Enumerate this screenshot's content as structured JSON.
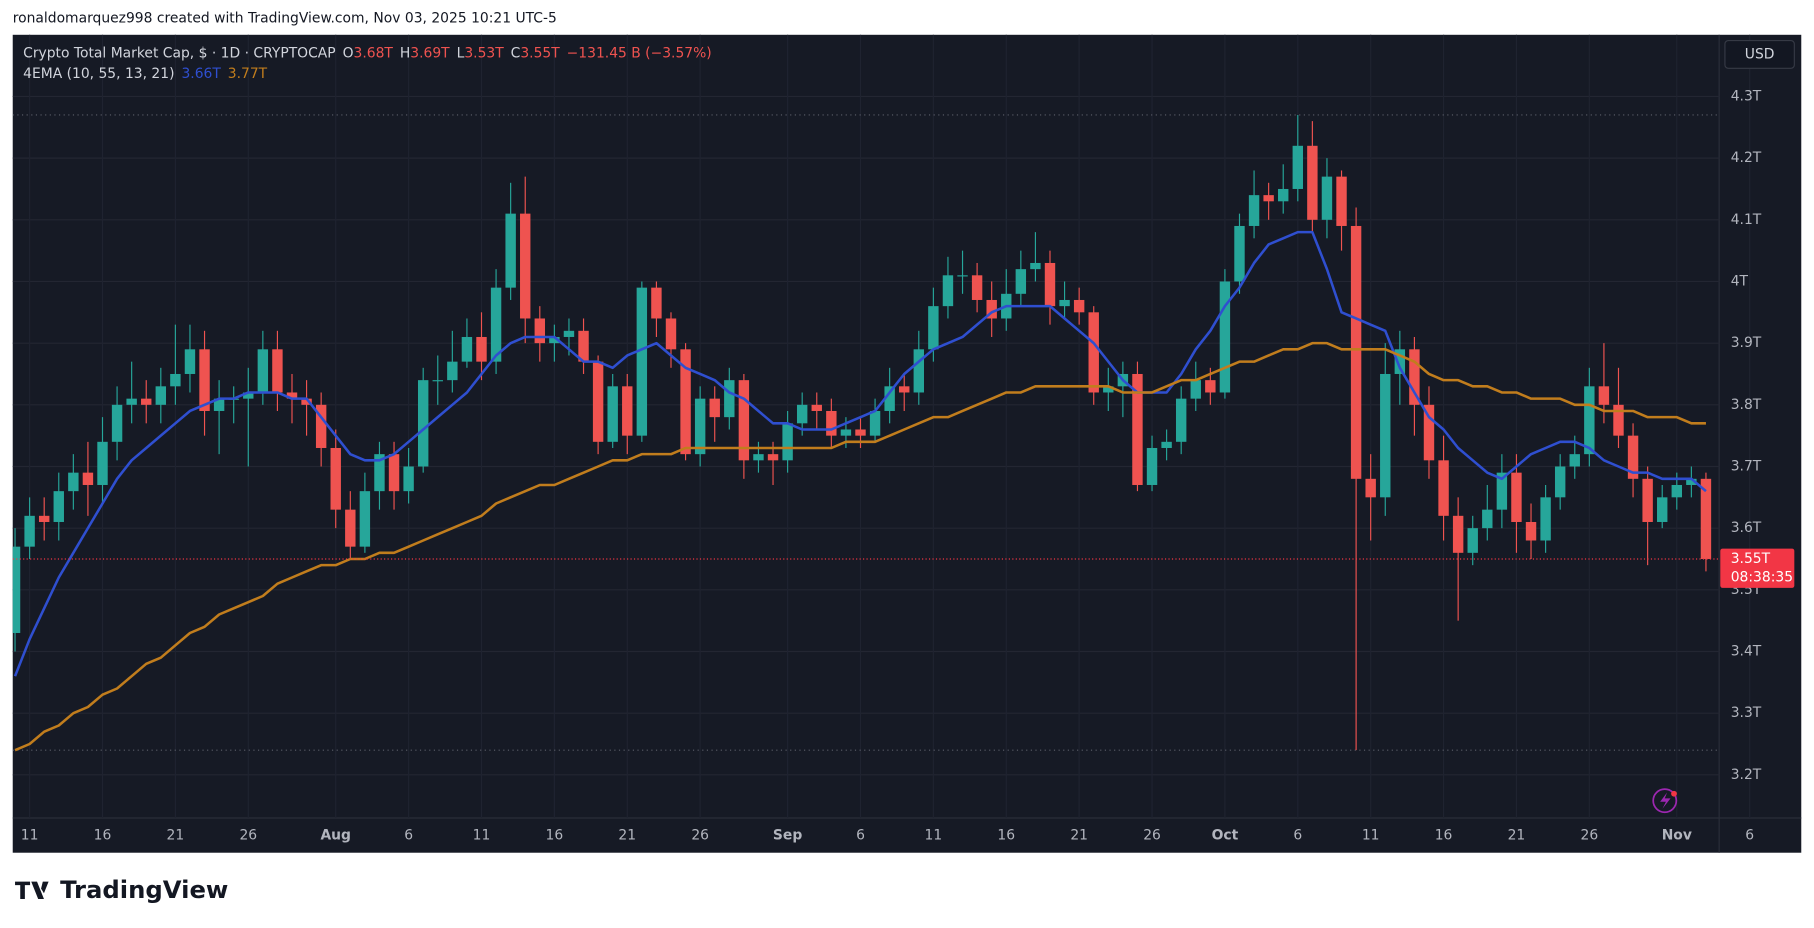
{
  "header": "ronaldomarquez998 created with TradingView.com, Nov 03, 2025 10:21 UTC-5",
  "logo": "TradingView",
  "chart_data": {
    "type": "candlestick",
    "legend": {
      "symbol": "Crypto Total Market Cap, $ · 1D · CRYPTOCAP",
      "ohlc": [
        {
          "label": "O",
          "value": "3.68T"
        },
        {
          "label": "H",
          "value": "3.69T"
        },
        {
          "label": "L",
          "value": "3.53T"
        },
        {
          "label": "C",
          "value": "3.55T"
        }
      ],
      "change": "−131.45 B (−3.57%)",
      "indicator": "4EMA (10, 55, 13, 21)",
      "indicator_values": [
        "3.66T",
        "3.77T"
      ]
    },
    "currency": "USD",
    "price_label": "3.55T",
    "countdown": "08:38:35",
    "up_color": "#26a69a",
    "down_color": "#ef5350",
    "categories": [
      null,
      "11",
      null,
      null,
      null,
      null,
      "16",
      null,
      null,
      null,
      null,
      "21",
      null,
      null,
      null,
      null,
      "26",
      null,
      null,
      null,
      null,
      null,
      "Aug",
      null,
      null,
      null,
      null,
      "6",
      null,
      null,
      null,
      null,
      "11",
      null,
      null,
      null,
      null,
      "16",
      null,
      null,
      null,
      null,
      "21",
      null,
      null,
      null,
      null,
      "26",
      null,
      null,
      null,
      null,
      null,
      "Sep",
      null,
      null,
      null,
      null,
      "6",
      null,
      null,
      null,
      null,
      "11",
      null,
      null,
      null,
      null,
      "16",
      null,
      null,
      null,
      null,
      "21",
      null,
      null,
      null,
      null,
      "26",
      null,
      null,
      null,
      null,
      "Oct",
      null,
      null,
      null,
      null,
      "6",
      null,
      null,
      null,
      null,
      "11",
      null,
      null,
      null,
      null,
      "16",
      null,
      null,
      null,
      null,
      "21",
      null,
      null,
      null,
      null,
      "26",
      null,
      null,
      null,
      null,
      null,
      "Nov",
      null,
      null,
      null,
      null,
      "6"
    ],
    "open": [
      3.43,
      3.57,
      3.62,
      3.61,
      3.66,
      3.69,
      3.67,
      3.74,
      3.8,
      3.81,
      3.8,
      3.83,
      3.85,
      3.89,
      3.79,
      3.81,
      3.81,
      3.82,
      3.89,
      3.82,
      3.81,
      3.8,
      3.73,
      3.63,
      3.57,
      3.66,
      3.72,
      3.66,
      3.7,
      3.84,
      3.84,
      3.87,
      3.91,
      3.87,
      3.99,
      4.11,
      3.94,
      3.9,
      3.91,
      3.92,
      3.87,
      3.74,
      3.83,
      3.75,
      3.99,
      3.94,
      3.89,
      3.72,
      3.81,
      3.78,
      3.84,
      3.71,
      3.72,
      3.71,
      3.77,
      3.8,
      3.79,
      3.75,
      3.76,
      3.75,
      3.79,
      3.83,
      3.82,
      3.89,
      3.96,
      4.01,
      4.01,
      3.97,
      3.94,
      3.98,
      4.02,
      4.03,
      3.96,
      3.97,
      3.95,
      3.82,
      3.83,
      3.85,
      3.67,
      3.73,
      3.74,
      3.81,
      3.84,
      3.82,
      4.0,
      4.09,
      4.14,
      4.13,
      4.15,
      4.22,
      4.1,
      4.17,
      4.09,
      3.68,
      3.65,
      3.85,
      3.89,
      3.8,
      3.71,
      3.62,
      3.56,
      3.6,
      3.63,
      3.69,
      3.61,
      3.58,
      3.65,
      3.7,
      3.72,
      3.83,
      3.8,
      3.75,
      3.68,
      3.61,
      3.65,
      3.67,
      3.68,
      null,
      null,
      null
    ],
    "high": [
      3.6,
      3.65,
      3.65,
      3.69,
      3.72,
      3.74,
      3.78,
      3.83,
      3.87,
      3.84,
      3.86,
      3.93,
      3.93,
      3.92,
      3.84,
      3.83,
      3.86,
      3.92,
      3.92,
      3.85,
      3.84,
      3.82,
      3.76,
      3.66,
      3.69,
      3.74,
      3.74,
      3.73,
      3.86,
      3.88,
      3.92,
      3.94,
      3.95,
      4.02,
      4.16,
      4.17,
      3.96,
      3.93,
      3.94,
      3.94,
      3.88,
      3.85,
      3.85,
      4.0,
      4.0,
      3.95,
      3.9,
      3.83,
      3.83,
      3.86,
      3.85,
      3.74,
      3.74,
      3.79,
      3.82,
      3.82,
      3.81,
      3.78,
      3.78,
      3.81,
      3.86,
      3.85,
      3.92,
      3.99,
      4.04,
      4.05,
      4.03,
      4.0,
      4.02,
      4.05,
      4.08,
      4.05,
      4.0,
      3.99,
      3.96,
      3.86,
      3.87,
      3.87,
      3.75,
      3.76,
      3.83,
      3.87,
      3.86,
      4.02,
      4.11,
      4.18,
      4.16,
      4.19,
      4.27,
      4.26,
      4.2,
      4.18,
      4.12,
      3.72,
      3.9,
      3.92,
      3.91,
      3.83,
      3.75,
      3.65,
      3.62,
      3.67,
      3.72,
      3.72,
      3.64,
      3.67,
      3.72,
      3.75,
      3.86,
      3.9,
      3.86,
      3.77,
      3.7,
      3.67,
      3.69,
      3.7,
      3.69,
      null,
      null,
      null
    ],
    "low": [
      3.4,
      3.55,
      3.58,
      3.58,
      3.63,
      3.62,
      3.64,
      3.71,
      3.77,
      3.77,
      3.77,
      3.8,
      3.82,
      3.75,
      3.72,
      3.77,
      3.7,
      3.8,
      3.79,
      3.77,
      3.75,
      3.7,
      3.6,
      3.55,
      3.56,
      3.63,
      3.63,
      3.64,
      3.69,
      3.8,
      3.82,
      3.86,
      3.84,
      3.85,
      3.97,
      3.9,
      3.87,
      3.87,
      3.88,
      3.85,
      3.72,
      3.73,
      3.72,
      3.74,
      3.91,
      3.86,
      3.71,
      3.7,
      3.74,
      3.76,
      3.68,
      3.69,
      3.67,
      3.69,
      3.75,
      3.76,
      3.73,
      3.73,
      3.73,
      3.74,
      3.77,
      3.79,
      3.8,
      3.87,
      3.94,
      3.98,
      3.95,
      3.91,
      3.92,
      3.96,
      4.0,
      3.93,
      3.94,
      3.93,
      3.8,
      3.79,
      3.78,
      3.66,
      3.66,
      3.71,
      3.72,
      3.79,
      3.8,
      3.81,
      3.98,
      4.07,
      4.1,
      4.11,
      4.13,
      4.08,
      4.07,
      4.05,
      3.24,
      3.58,
      3.62,
      3.8,
      3.75,
      3.68,
      3.58,
      3.45,
      3.54,
      3.58,
      3.6,
      3.56,
      3.55,
      3.56,
      3.63,
      3.68,
      3.7,
      3.77,
      3.73,
      3.65,
      3.54,
      3.6,
      3.63,
      3.65,
      3.53,
      null,
      null,
      null
    ],
    "close": [
      3.57,
      3.62,
      3.61,
      3.66,
      3.69,
      3.67,
      3.74,
      3.8,
      3.81,
      3.8,
      3.83,
      3.85,
      3.89,
      3.79,
      3.81,
      3.81,
      3.82,
      3.89,
      3.82,
      3.81,
      3.8,
      3.73,
      3.63,
      3.57,
      3.66,
      3.72,
      3.66,
      3.7,
      3.84,
      3.84,
      3.87,
      3.91,
      3.87,
      3.99,
      4.11,
      3.94,
      3.9,
      3.91,
      3.92,
      3.87,
      3.74,
      3.83,
      3.75,
      3.99,
      3.94,
      3.89,
      3.72,
      3.81,
      3.78,
      3.84,
      3.71,
      3.72,
      3.71,
      3.77,
      3.8,
      3.79,
      3.75,
      3.76,
      3.75,
      3.79,
      3.83,
      3.82,
      3.89,
      3.96,
      4.01,
      4.01,
      3.97,
      3.94,
      3.98,
      4.02,
      4.03,
      3.96,
      3.97,
      3.95,
      3.82,
      3.83,
      3.85,
      3.67,
      3.73,
      3.74,
      3.81,
      3.84,
      3.82,
      4.0,
      4.09,
      4.14,
      4.13,
      4.15,
      4.22,
      4.1,
      4.17,
      4.09,
      3.68,
      3.65,
      3.85,
      3.89,
      3.8,
      3.71,
      3.62,
      3.56,
      3.6,
      3.63,
      3.69,
      3.61,
      3.58,
      3.65,
      3.7,
      3.72,
      3.83,
      3.8,
      3.75,
      3.68,
      3.61,
      3.65,
      3.67,
      3.68,
      3.55,
      null,
      null,
      null
    ],
    "series": [
      {
        "color": "#2f4fd0",
        "values": [
          3.36,
          3.42,
          3.47,
          3.52,
          3.56,
          3.6,
          3.64,
          3.68,
          3.71,
          3.73,
          3.75,
          3.77,
          3.79,
          3.8,
          3.81,
          3.81,
          3.82,
          3.82,
          3.82,
          3.81,
          3.81,
          3.78,
          3.75,
          3.72,
          3.71,
          3.71,
          3.72,
          3.74,
          3.76,
          3.78,
          3.8,
          3.82,
          3.85,
          3.88,
          3.9,
          3.91,
          3.91,
          3.91,
          3.89,
          3.87,
          3.87,
          3.86,
          3.88,
          3.89,
          3.9,
          3.88,
          3.86,
          3.85,
          3.84,
          3.82,
          3.81,
          3.79,
          3.77,
          3.77,
          3.76,
          3.76,
          3.76,
          3.77,
          3.78,
          3.79,
          3.82,
          3.85,
          3.87,
          3.89,
          3.9,
          3.91,
          3.93,
          3.95,
          3.96,
          3.96,
          3.96,
          3.96,
          3.94,
          3.92,
          3.9,
          3.87,
          3.84,
          3.82,
          3.82,
          3.82,
          3.85,
          3.89,
          3.92,
          3.96,
          3.99,
          4.03,
          4.06,
          4.07,
          4.08,
          4.08,
          4.02,
          3.95,
          3.94,
          3.93,
          3.92,
          3.86,
          3.82,
          3.78,
          3.76,
          3.73,
          3.71,
          3.69,
          3.68,
          3.7,
          3.72,
          3.73,
          3.74,
          3.74,
          3.73,
          3.71,
          3.7,
          3.69,
          3.69,
          3.68,
          3.68,
          3.68,
          3.66,
          null,
          null,
          null
        ]
      },
      {
        "color": "#c17d1d",
        "values": [
          3.24,
          3.25,
          3.27,
          3.28,
          3.3,
          3.31,
          3.33,
          3.34,
          3.36,
          3.38,
          3.39,
          3.41,
          3.43,
          3.44,
          3.46,
          3.47,
          3.48,
          3.49,
          3.51,
          3.52,
          3.53,
          3.54,
          3.54,
          3.55,
          3.55,
          3.56,
          3.56,
          3.57,
          3.58,
          3.59,
          3.6,
          3.61,
          3.62,
          3.64,
          3.65,
          3.66,
          3.67,
          3.67,
          3.68,
          3.69,
          3.7,
          3.71,
          3.71,
          3.72,
          3.72,
          3.72,
          3.73,
          3.73,
          3.73,
          3.73,
          3.73,
          3.73,
          3.73,
          3.73,
          3.73,
          3.73,
          3.73,
          3.74,
          3.74,
          3.74,
          3.75,
          3.76,
          3.77,
          3.78,
          3.78,
          3.79,
          3.8,
          3.81,
          3.82,
          3.82,
          3.83,
          3.83,
          3.83,
          3.83,
          3.83,
          3.83,
          3.82,
          3.82,
          3.82,
          3.83,
          3.84,
          3.84,
          3.85,
          3.86,
          3.87,
          3.87,
          3.88,
          3.89,
          3.89,
          3.9,
          3.9,
          3.89,
          3.89,
          3.89,
          3.89,
          3.88,
          3.87,
          3.85,
          3.84,
          3.84,
          3.83,
          3.83,
          3.82,
          3.82,
          3.81,
          3.81,
          3.81,
          3.8,
          3.8,
          3.79,
          3.79,
          3.79,
          3.78,
          3.78,
          3.78,
          3.77,
          3.77,
          null,
          null,
          null
        ]
      }
    ],
    "ylim": [
      3.13,
      4.4
    ],
    "yticks": [
      {
        "value": 3.2,
        "label": "3.2T"
      },
      {
        "value": 3.3,
        "label": "3.3T"
      },
      {
        "value": 3.4,
        "label": "3.4T"
      },
      {
        "value": 3.5,
        "label": "3.5T"
      },
      {
        "value": 3.6,
        "label": "3.6T"
      },
      {
        "value": 3.7,
        "label": "3.7T"
      },
      {
        "value": 3.8,
        "label": "3.8T"
      },
      {
        "value": 3.9,
        "label": "3.9T"
      },
      {
        "value": 4,
        "label": "4T"
      },
      {
        "value": 4.1,
        "label": "4.1T"
      },
      {
        "value": 4.2,
        "label": "4.2T"
      },
      {
        "value": 4.3,
        "label": "4.3T"
      }
    ],
    "grid": true
  }
}
